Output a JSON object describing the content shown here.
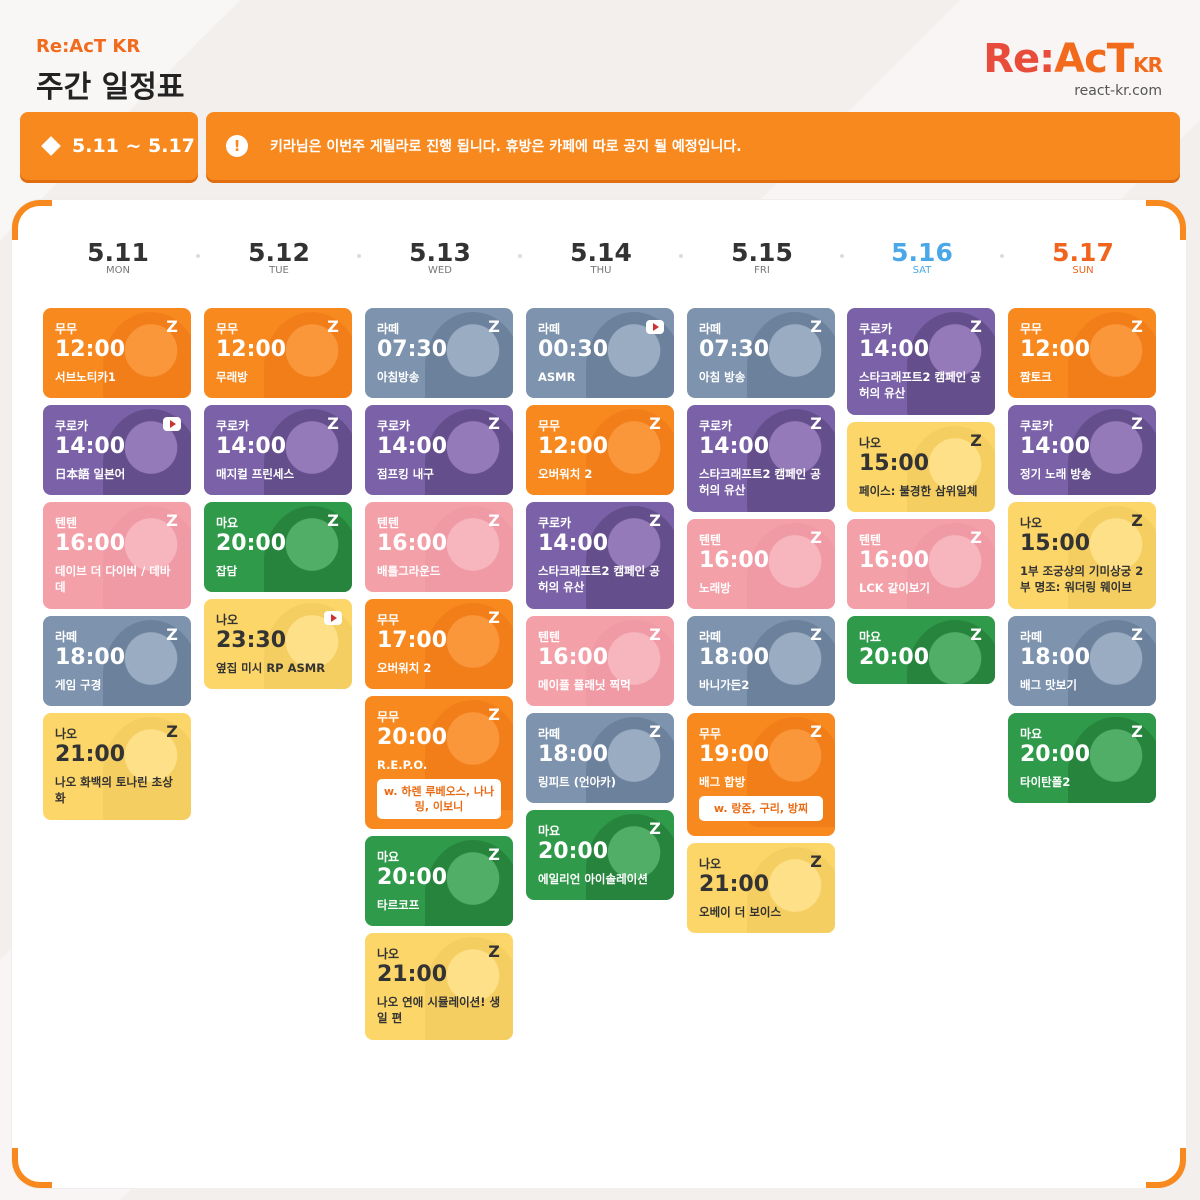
{
  "header": {
    "brand_small": "Re:AcT KR",
    "page_title": "주간 일정표",
    "logo_re": "Re:",
    "logo_act": "AcT",
    "logo_kr": "KR",
    "site": "react-kr.com",
    "date_range": "5.11 ~ 5.17",
    "notice": "키라님은 이번주 게릴라로 진행 됩니다. 휴방은 카페에 따로 공지 될 예정입니다.",
    "alert_symbol": "!"
  },
  "colors": {
    "accent": "#f7891e",
    "mumu": "#f7891e",
    "kuroka": "#7a61a8",
    "tenten": "#f3a0a8",
    "rate": "#7d93ae",
    "nao": "#fcd668",
    "mayo": "#2f9a4a",
    "saturday": "#4aa8e8",
    "sunday": "#f0641e"
  },
  "days": [
    {
      "date": "5.11",
      "weekday": "MON",
      "events": [
        {
          "who": "무무",
          "time": "12:00",
          "title": "서브노티카1",
          "platform": "chzzk"
        },
        {
          "who": "쿠로카",
          "time": "14:00",
          "title": "日本語 일본어",
          "platform": "youtube"
        },
        {
          "who": "텐텐",
          "time": "16:00",
          "title": "데이브 더 다이버 / 데바데",
          "platform": "chzzk"
        },
        {
          "who": "라떼",
          "time": "18:00",
          "title": "게임 구경",
          "platform": "chzzk"
        },
        {
          "who": "나오",
          "time": "21:00",
          "title": "나오 화백의 토나린 초상화",
          "platform": "chzzk"
        }
      ]
    },
    {
      "date": "5.12",
      "weekday": "TUE",
      "events": [
        {
          "who": "무무",
          "time": "12:00",
          "title": "무래방",
          "platform": "chzzk"
        },
        {
          "who": "쿠로카",
          "time": "14:00",
          "title": "매지컬 프린세스",
          "platform": "chzzk"
        },
        {
          "who": "마요",
          "time": "20:00",
          "title": "잡담",
          "platform": "chzzk"
        },
        {
          "who": "나오",
          "time": "23:30",
          "title": "옆집 미시 RP ASMR",
          "platform": "youtube"
        }
      ]
    },
    {
      "date": "5.13",
      "weekday": "WED",
      "events": [
        {
          "who": "라떼",
          "time": "07:30",
          "title": "아침방송",
          "platform": "chzzk"
        },
        {
          "who": "쿠로카",
          "time": "14:00",
          "title": "점프킹 내구",
          "platform": "chzzk"
        },
        {
          "who": "텐텐",
          "time": "16:00",
          "title": "배틀그라운드",
          "platform": "chzzk"
        },
        {
          "who": "무무",
          "time": "17:00",
          "title": "오버워치 2",
          "platform": "chzzk"
        },
        {
          "who": "무무",
          "time": "20:00",
          "title": "R.E.P.O.",
          "guest": "w. 하렌 루베오스, 나나링, 이보니",
          "platform": "chzzk"
        },
        {
          "who": "마요",
          "time": "20:00",
          "title": "타르코프",
          "platform": "chzzk"
        },
        {
          "who": "나오",
          "time": "21:00",
          "title": "나오 연애 시뮬레이션! 생일 편",
          "platform": "chzzk"
        }
      ]
    },
    {
      "date": "5.14",
      "weekday": "THU",
      "events": [
        {
          "who": "라떼",
          "time": "00:30",
          "title": "ASMR",
          "platform": "youtube"
        },
        {
          "who": "무무",
          "time": "12:00",
          "title": "오버워치 2",
          "platform": "chzzk"
        },
        {
          "who": "쿠로카",
          "time": "14:00",
          "title": "스타크래프트2 캠페인 공허의 유산",
          "platform": "chzzk"
        },
        {
          "who": "텐텐",
          "time": "16:00",
          "title": "메이플 플래닛 찍먹",
          "platform": "chzzk"
        },
        {
          "who": "라떼",
          "time": "18:00",
          "title": "링피트 (언아카)",
          "platform": "chzzk"
        },
        {
          "who": "마요",
          "time": "20:00",
          "title": "에일리언 아이솔레이션",
          "platform": "chzzk"
        }
      ]
    },
    {
      "date": "5.15",
      "weekday": "FRI",
      "events": [
        {
          "who": "라떼",
          "time": "07:30",
          "title": "아침 방송",
          "platform": "chzzk"
        },
        {
          "who": "쿠로카",
          "time": "14:00",
          "title": "스타크래프트2 캠페인 공허의 유산",
          "platform": "chzzk"
        },
        {
          "who": "텐텐",
          "time": "16:00",
          "title": "노래방",
          "platform": "chzzk"
        },
        {
          "who": "라떼",
          "time": "18:00",
          "title": "바니가든2",
          "platform": "chzzk"
        },
        {
          "who": "무무",
          "time": "19:00",
          "title": "배그 합방",
          "guest": "w. 랑준, 구리, 방찌",
          "platform": "chzzk"
        },
        {
          "who": "나오",
          "time": "21:00",
          "title": "오베이 더 보이스",
          "platform": "chzzk"
        }
      ]
    },
    {
      "date": "5.16",
      "weekday": "SAT",
      "events": [
        {
          "who": "쿠로카",
          "time": "14:00",
          "title": "스타크래프트2 캠페인 공허의 유산",
          "platform": "chzzk"
        },
        {
          "who": "나오",
          "time": "15:00",
          "title": "페이스: 불경한 삼위일체",
          "platform": "chzzk"
        },
        {
          "who": "텐텐",
          "time": "16:00",
          "title": "LCK 같이보기",
          "platform": "chzzk"
        },
        {
          "who": "마요",
          "time": "20:00",
          "title": "",
          "platform": "chzzk"
        }
      ]
    },
    {
      "date": "5.17",
      "weekday": "SUN",
      "events": [
        {
          "who": "무무",
          "time": "12:00",
          "title": "짬토크",
          "platform": "chzzk"
        },
        {
          "who": "쿠로카",
          "time": "14:00",
          "title": "정기 노래 방송",
          "platform": "chzzk"
        },
        {
          "who": "나오",
          "time": "15:00",
          "title": "1부 조궁상의 기미상궁 2부 명조: 워더링 웨이브",
          "platform": "chzzk"
        },
        {
          "who": "라떼",
          "time": "18:00",
          "title": "배그 맛보기",
          "platform": "chzzk"
        },
        {
          "who": "마요",
          "time": "20:00",
          "title": "타이탄폴2",
          "platform": "chzzk"
        }
      ]
    }
  ]
}
